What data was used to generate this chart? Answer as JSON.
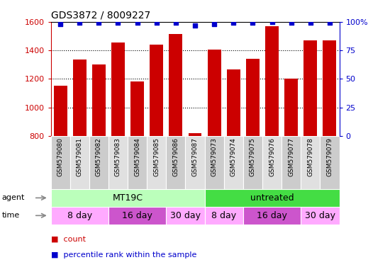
{
  "title": "GDS3872 / 8009227",
  "samples": [
    "GSM579080",
    "GSM579081",
    "GSM579082",
    "GSM579083",
    "GSM579084",
    "GSM579085",
    "GSM579086",
    "GSM579087",
    "GSM579073",
    "GSM579074",
    "GSM579075",
    "GSM579076",
    "GSM579077",
    "GSM579078",
    "GSM579079"
  ],
  "counts": [
    1150,
    1335,
    1300,
    1455,
    1180,
    1440,
    1515,
    820,
    1405,
    1265,
    1340,
    1570,
    1200,
    1470,
    1470
  ],
  "percentiles": [
    98,
    99,
    99,
    99,
    99,
    99,
    99,
    97,
    98,
    99,
    99,
    100,
    99,
    99,
    99
  ],
  "bar_color": "#cc0000",
  "dot_color": "#0000cc",
  "ylim_left": [
    800,
    1600
  ],
  "ylim_right": [
    0,
    100
  ],
  "yticks_left": [
    800,
    1000,
    1200,
    1400,
    1600
  ],
  "yticks_right": [
    0,
    25,
    50,
    75,
    100
  ],
  "agent_groups": [
    {
      "text": "MT19C",
      "start": 0,
      "end": 8,
      "color": "#bbffbb"
    },
    {
      "text": "untreated",
      "start": 8,
      "end": 15,
      "color": "#44dd44"
    }
  ],
  "time_groups": [
    {
      "text": "8 day",
      "start": 0,
      "end": 3,
      "color": "#ffaaff"
    },
    {
      "text": "16 day",
      "start": 3,
      "end": 6,
      "color": "#cc55cc"
    },
    {
      "text": "30 day",
      "start": 6,
      "end": 8,
      "color": "#ffaaff"
    },
    {
      "text": "8 day",
      "start": 8,
      "end": 10,
      "color": "#ffaaff"
    },
    {
      "text": "16 day",
      "start": 10,
      "end": 13,
      "color": "#cc55cc"
    },
    {
      "text": "30 day",
      "start": 13,
      "end": 15,
      "color": "#ffaaff"
    }
  ],
  "sample_bg_even": "#cccccc",
  "sample_bg_odd": "#e0e0e0",
  "background_color": "#ffffff"
}
